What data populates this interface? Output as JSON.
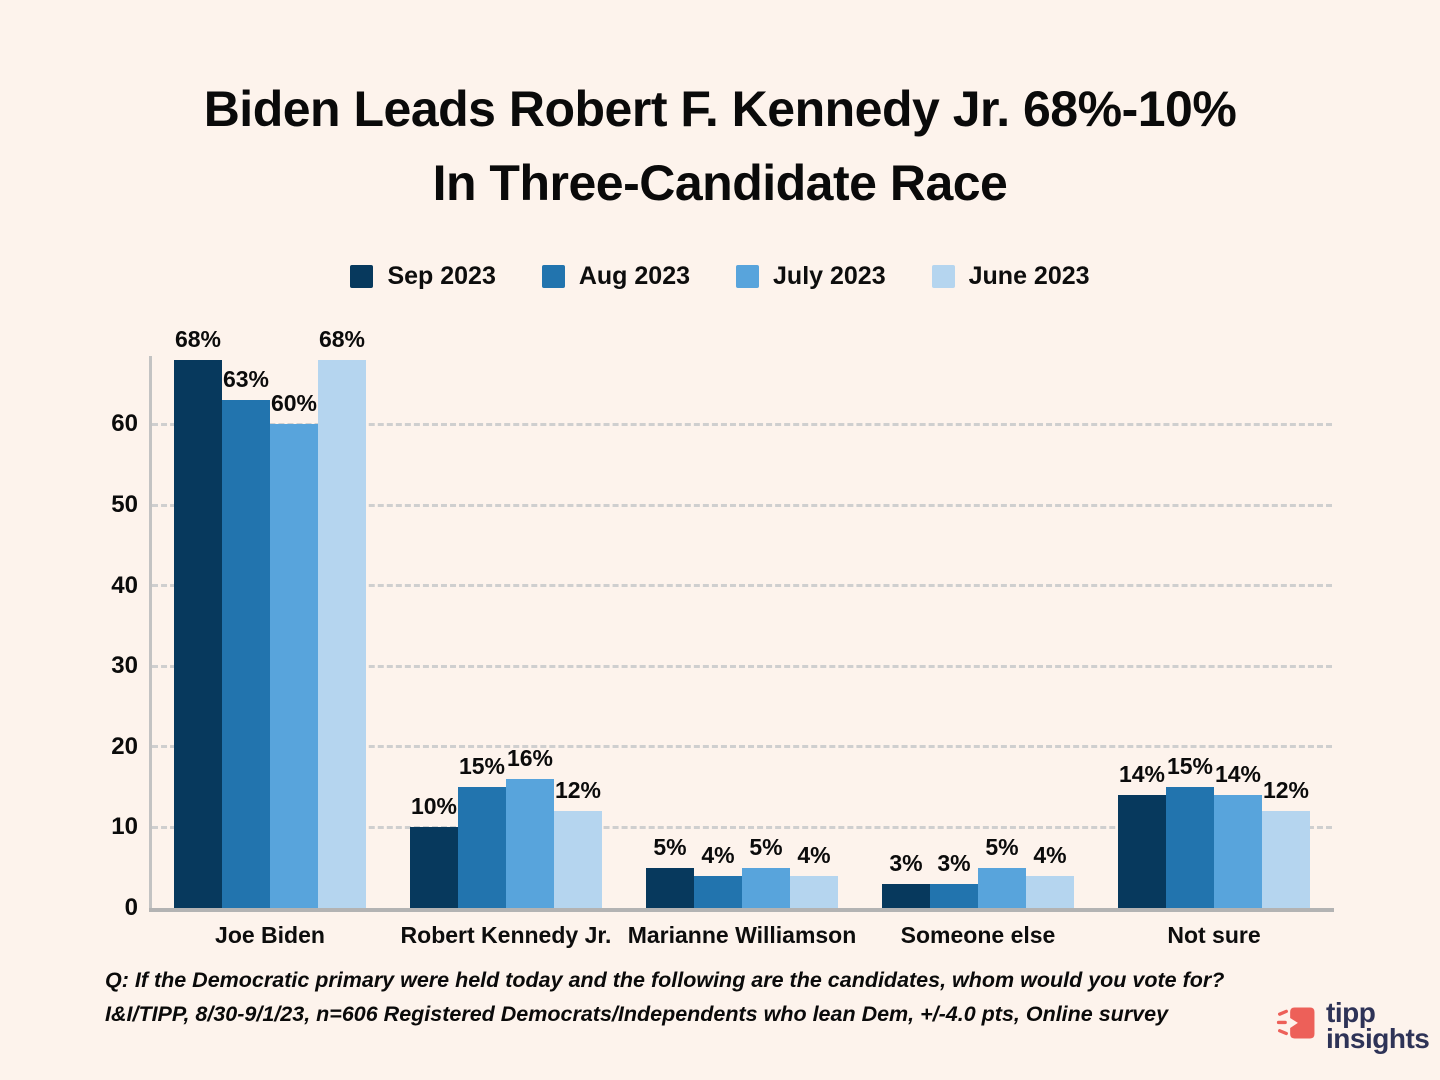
{
  "title": {
    "line1": "Biden Leads Robert F. Kennedy Jr. 68%-10%",
    "line2": "In Three-Candidate Race"
  },
  "chart_data": {
    "type": "bar",
    "title": "Biden Leads Robert F. Kennedy Jr. 68%-10% In Three-Candidate Race",
    "categories": [
      "Joe Biden",
      "Robert Kennedy Jr.",
      "Marianne Williamson",
      "Someone else",
      "Not sure"
    ],
    "series": [
      {
        "name": "Sep 2023",
        "color": "#07395d",
        "values": [
          68,
          10,
          5,
          3,
          14
        ]
      },
      {
        "name": "Aug 2023",
        "color": "#2274ae",
        "values": [
          63,
          15,
          4,
          3,
          15
        ]
      },
      {
        "name": "July 2023",
        "color": "#58a4dc",
        "values": [
          60,
          16,
          5,
          5,
          14
        ]
      },
      {
        "name": "June 2023",
        "color": "#b5d5ef",
        "values": [
          68,
          12,
          4,
          4,
          12
        ]
      }
    ],
    "ylim": [
      0,
      68
    ],
    "yticks": [
      0,
      10,
      20,
      30,
      40,
      50,
      60
    ],
    "grid": "horizontal-dashed",
    "legend_position": "top",
    "value_label_suffix": "%",
    "xlabel": "",
    "ylabel": ""
  },
  "footnote": {
    "line1": "Q:  If the Democratic primary were held today and the following are the candidates, whom would you vote for?",
    "line2": "I&I/TIPP, 8/30-9/1/23, n=606 Registered Democrats/Independents who lean Dem, +/-4.0 pts, Online survey"
  },
  "logo": {
    "line1": "tipp",
    "line2": "insights",
    "icon": "megaphone-icon",
    "text_color": "#2e3357",
    "icon_color": "#ed6059"
  },
  "colors": {
    "background": "#fdf3ec",
    "gridline": "#cfcfcf",
    "axis_line": "#b9b9b9",
    "text": "#0b0b0b"
  }
}
